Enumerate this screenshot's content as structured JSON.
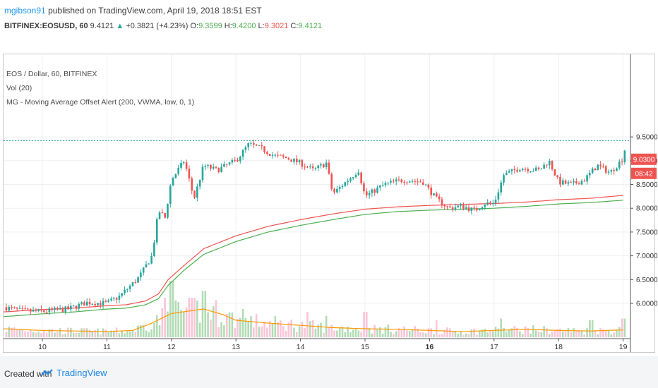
{
  "header": {
    "user": "mgibson91",
    "published_text": "published on TradingView.com, April 19, 2018 18:51 EST",
    "symbol": "BITFINEX:EOSUSD, 60",
    "price": "9.4121",
    "change_arrow": "▲",
    "change": "+0.3821 (+4.23%)",
    "o_label": "O:",
    "o_value": "9.3599",
    "h_label": "H:",
    "h_value": "9.4200",
    "l_label": "L:",
    "l_value": "9.3021",
    "c_label": "C:",
    "c_value": "9.4121"
  },
  "legend": {
    "title": "EOS / Dollar, 60, BITFINEX",
    "vol": "Vol (20)",
    "indicator": "MG - Moving Average Offset Alert (200, VWMA, low, 0, 1)"
  },
  "price_tag": "9.0300",
  "time_tag": "08:42",
  "footer": {
    "created_with": "Created with",
    "brand": "TradingView"
  },
  "colors": {
    "up": "#26a69a",
    "down": "#ef5350",
    "ma_red": "#ef5350",
    "ma_green": "#4caf50",
    "vol_ma": "#ff9800",
    "vol_up": "#a5d6a7",
    "vol_down": "#f8bbd0",
    "level": "#26a69a"
  },
  "chart_data": {
    "type": "candlestick",
    "title": "EOS / Dollar, 60, BITFINEX",
    "x_ticks": [
      "10",
      "11",
      "12",
      "13",
      "14",
      "15",
      "16",
      "17",
      "18",
      "19"
    ],
    "y_ticks": [
      "6.0000",
      "6.5000",
      "7.0000",
      "7.5000",
      "8.0000",
      "8.5000",
      "9.0000",
      "9.5000"
    ],
    "ylim": [
      5.6,
      9.7
    ],
    "level_line": 9.42,
    "price_key_points": [
      [
        9.4,
        5.92
      ],
      [
        9.7,
        5.84
      ],
      [
        10.0,
        5.83
      ],
      [
        10.4,
        5.88
      ],
      [
        10.7,
        6.02
      ],
      [
        11.0,
        6.0
      ],
      [
        11.2,
        6.15
      ],
      [
        11.5,
        6.55
      ],
      [
        11.7,
        7.0
      ],
      [
        11.8,
        7.95
      ],
      [
        11.9,
        7.8
      ],
      [
        12.0,
        8.6
      ],
      [
        12.2,
        9.0
      ],
      [
        12.35,
        8.2
      ],
      [
        12.5,
        8.9
      ],
      [
        12.7,
        8.8
      ],
      [
        13.0,
        9.0
      ],
      [
        13.2,
        9.35
      ],
      [
        13.4,
        9.25
      ],
      [
        13.6,
        9.1
      ],
      [
        13.8,
        9.05
      ],
      [
        14.0,
        8.95
      ],
      [
        14.2,
        8.8
      ],
      [
        14.4,
        8.95
      ],
      [
        14.5,
        8.3
      ],
      [
        14.7,
        8.55
      ],
      [
        14.9,
        8.8
      ],
      [
        15.0,
        8.25
      ],
      [
        15.3,
        8.5
      ],
      [
        15.6,
        8.6
      ],
      [
        15.9,
        8.55
      ],
      [
        16.1,
        8.2
      ],
      [
        16.3,
        8.0
      ],
      [
        16.5,
        8.05
      ],
      [
        16.7,
        7.95
      ],
      [
        16.85,
        8.1
      ],
      [
        17.0,
        8.1
      ],
      [
        17.15,
        8.7
      ],
      [
        17.4,
        8.85
      ],
      [
        17.7,
        8.8
      ],
      [
        17.85,
        9.0
      ],
      [
        18.0,
        8.55
      ],
      [
        18.2,
        8.5
      ],
      [
        18.4,
        8.6
      ],
      [
        18.6,
        8.9
      ],
      [
        18.8,
        8.75
      ],
      [
        19.0,
        9.05
      ],
      [
        19.05,
        9.41
      ]
    ],
    "series": [
      {
        "name": "",
        "key_points": [
          [
            9.4,
            5.82
          ],
          [
            10.0,
            5.87
          ],
          [
            10.5,
            5.9
          ],
          [
            11.0,
            5.95
          ],
          [
            11.3,
            5.97
          ],
          [
            11.6,
            6.05
          ],
          [
            11.8,
            6.2
          ],
          [
            11.95,
            6.5
          ],
          [
            12.2,
            6.8
          ],
          [
            12.5,
            7.15
          ],
          [
            13.0,
            7.42
          ],
          [
            13.5,
            7.62
          ],
          [
            14.0,
            7.76
          ],
          [
            14.5,
            7.88
          ],
          [
            15.0,
            7.98
          ],
          [
            15.5,
            8.03
          ],
          [
            16.0,
            8.06
          ],
          [
            16.5,
            8.08
          ],
          [
            17.0,
            8.1
          ],
          [
            17.5,
            8.13
          ],
          [
            18.0,
            8.18
          ],
          [
            18.5,
            8.21
          ],
          [
            19.0,
            8.27
          ]
        ]
      },
      {
        "name": "",
        "key_points": [
          [
            9.4,
            5.72
          ],
          [
            10.0,
            5.78
          ],
          [
            10.5,
            5.82
          ],
          [
            11.0,
            5.88
          ],
          [
            11.3,
            5.9
          ],
          [
            11.6,
            5.97
          ],
          [
            11.8,
            6.1
          ],
          [
            11.95,
            6.38
          ],
          [
            12.2,
            6.7
          ],
          [
            12.5,
            7.03
          ],
          [
            13.0,
            7.3
          ],
          [
            13.5,
            7.5
          ],
          [
            14.0,
            7.64
          ],
          [
            14.5,
            7.76
          ],
          [
            15.0,
            7.87
          ],
          [
            15.5,
            7.93
          ],
          [
            16.0,
            7.96
          ],
          [
            16.5,
            7.98
          ],
          [
            17.0,
            8.0
          ],
          [
            17.5,
            8.04
          ],
          [
            18.0,
            8.09
          ],
          [
            18.5,
            8.12
          ],
          [
            19.0,
            8.17
          ]
        ]
      }
    ],
    "volume_ma_key_points": [
      [
        9.4,
        0.15
      ],
      [
        10.0,
        0.12
      ],
      [
        10.5,
        0.11
      ],
      [
        11.0,
        0.1
      ],
      [
        11.4,
        0.12
      ],
      [
        11.7,
        0.25
      ],
      [
        12.0,
        0.42
      ],
      [
        12.5,
        0.5
      ],
      [
        12.8,
        0.4
      ],
      [
        13.0,
        0.3
      ],
      [
        13.5,
        0.25
      ],
      [
        14.0,
        0.21
      ],
      [
        14.5,
        0.17
      ],
      [
        15.0,
        0.15
      ],
      [
        15.5,
        0.14
      ],
      [
        16.0,
        0.12
      ],
      [
        16.5,
        0.1
      ],
      [
        17.0,
        0.12
      ],
      [
        17.5,
        0.14
      ],
      [
        18.0,
        0.12
      ],
      [
        18.5,
        0.11
      ],
      [
        19.0,
        0.13
      ]
    ],
    "volume_spikes": [
      [
        12.0,
        1.0
      ],
      [
        12.3,
        0.7
      ],
      [
        12.5,
        0.82
      ],
      [
        11.9,
        0.7
      ],
      [
        13.1,
        0.5
      ],
      [
        14.1,
        0.45
      ],
      [
        14.4,
        0.38
      ],
      [
        15.0,
        0.45
      ],
      [
        16.1,
        0.3
      ],
      [
        17.1,
        0.33
      ],
      [
        18.5,
        0.3
      ],
      [
        19.0,
        0.33
      ]
    ]
  }
}
